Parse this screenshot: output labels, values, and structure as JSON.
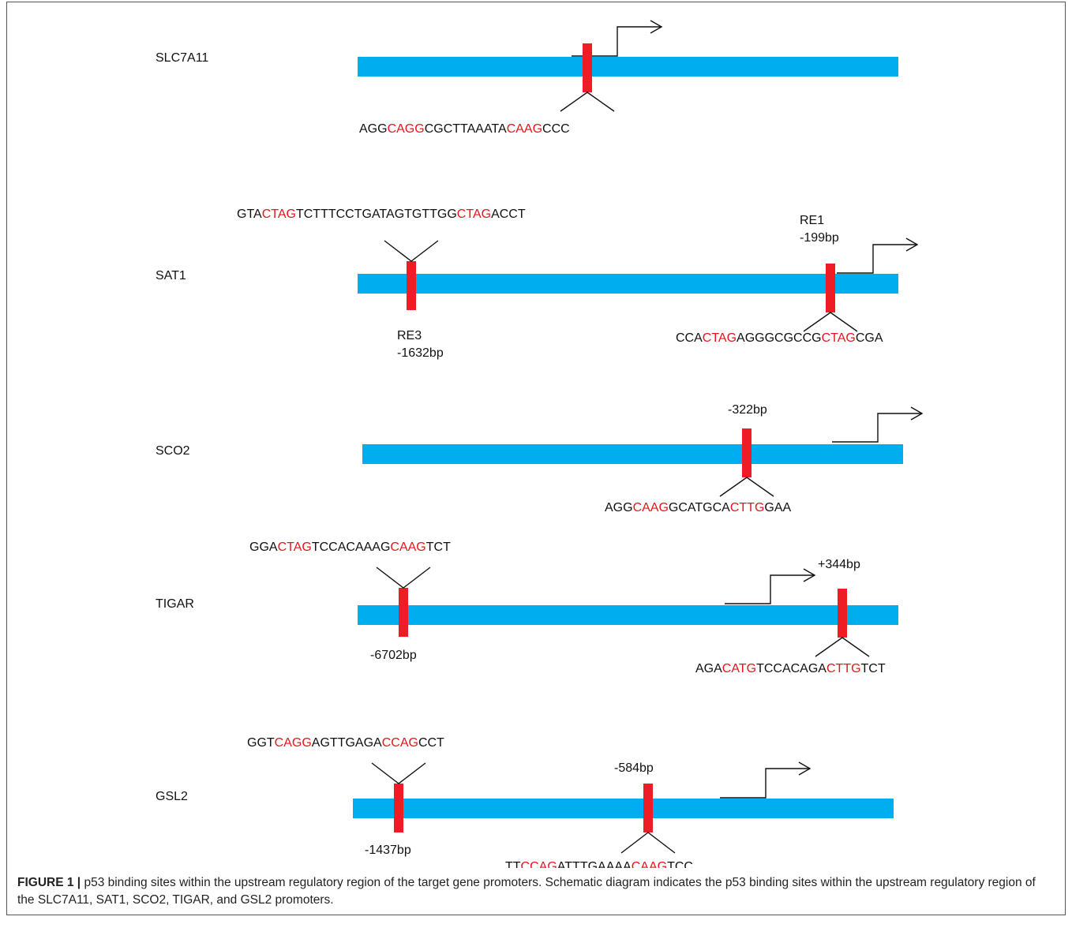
{
  "colors": {
    "bar": "#00aeef",
    "site": "#ee1c25",
    "motif": "#e8141b",
    "text": "#111111"
  },
  "icons": [
    "arrow-right-icon"
  ],
  "genes": [
    {
      "name": "SLC7A11",
      "sites": [
        {
          "labels": [],
          "sequence": [
            {
              "text": "AGG",
              "motif": false
            },
            {
              "text": "CAGG",
              "motif": true
            },
            {
              "text": "CGCTTAAATA",
              "motif": false
            },
            {
              "text": "CAAG",
              "motif": true
            },
            {
              "text": "CCC",
              "motif": false
            }
          ]
        }
      ]
    },
    {
      "name": "SAT1",
      "sites": [
        {
          "labels": [
            "RE3",
            "-1632bp"
          ],
          "sequence": [
            {
              "text": "GTA",
              "motif": false
            },
            {
              "text": "CTAG",
              "motif": true
            },
            {
              "text": "TCTTTCCTGATAGTGTTGG",
              "motif": false
            },
            {
              "text": "CTAG",
              "motif": true
            },
            {
              "text": "ACCT",
              "motif": false
            }
          ]
        },
        {
          "labels": [
            "RE1",
            "-199bp"
          ],
          "sequence": [
            {
              "text": "CCA",
              "motif": false
            },
            {
              "text": "CTAG",
              "motif": true
            },
            {
              "text": "AGGGCGCCG",
              "motif": false
            },
            {
              "text": "CTAG",
              "motif": true
            },
            {
              "text": "CGA",
              "motif": false
            }
          ]
        }
      ]
    },
    {
      "name": "SCO2",
      "sites": [
        {
          "labels": [
            "-322bp"
          ],
          "sequence": [
            {
              "text": "AGG",
              "motif": false
            },
            {
              "text": "CAAG",
              "motif": true
            },
            {
              "text": "GCATGCA",
              "motif": false
            },
            {
              "text": "CTTG",
              "motif": true
            },
            {
              "text": "GAA",
              "motif": false
            }
          ]
        }
      ]
    },
    {
      "name": "TIGAR",
      "sites": [
        {
          "labels": [
            "-6702bp"
          ],
          "sequence": [
            {
              "text": "GGA",
              "motif": false
            },
            {
              "text": "CTAG",
              "motif": true
            },
            {
              "text": "TCCACAAAG",
              "motif": false
            },
            {
              "text": "CAAG",
              "motif": true
            },
            {
              "text": "TCT",
              "motif": false
            }
          ]
        },
        {
          "labels": [
            "+344bp"
          ],
          "sequence": [
            {
              "text": "AGA",
              "motif": false
            },
            {
              "text": "CATG",
              "motif": true
            },
            {
              "text": "TCCACAGA",
              "motif": false
            },
            {
              "text": "CTTG",
              "motif": true
            },
            {
              "text": "TCT",
              "motif": false
            }
          ]
        }
      ]
    },
    {
      "name": "GSL2",
      "sites": [
        {
          "labels": [
            "-1437bp"
          ],
          "sequence": [
            {
              "text": "GGT",
              "motif": false
            },
            {
              "text": "CAGG",
              "motif": true
            },
            {
              "text": "AGTTGAGA",
              "motif": false
            },
            {
              "text": "CCAG",
              "motif": true
            },
            {
              "text": "CCT",
              "motif": false
            }
          ]
        },
        {
          "labels": [
            "-584bp"
          ],
          "sequence": [
            {
              "text": "TT",
              "motif": false
            },
            {
              "text": "CCAG",
              "motif": true
            },
            {
              "text": "ATTTGAAAA",
              "motif": false
            },
            {
              "text": "CAAG",
              "motif": true
            },
            {
              "text": "TCC",
              "motif": false
            }
          ]
        }
      ]
    }
  ],
  "caption": {
    "label": "FIGURE 1 |",
    "text": "p53 binding sites within the upstream regulatory region of the target gene promoters. Schematic diagram indicates the p53 binding sites within the upstream regulatory region of the SLC7A11, SAT1, SCO2, TIGAR, and GSL2 promoters."
  }
}
